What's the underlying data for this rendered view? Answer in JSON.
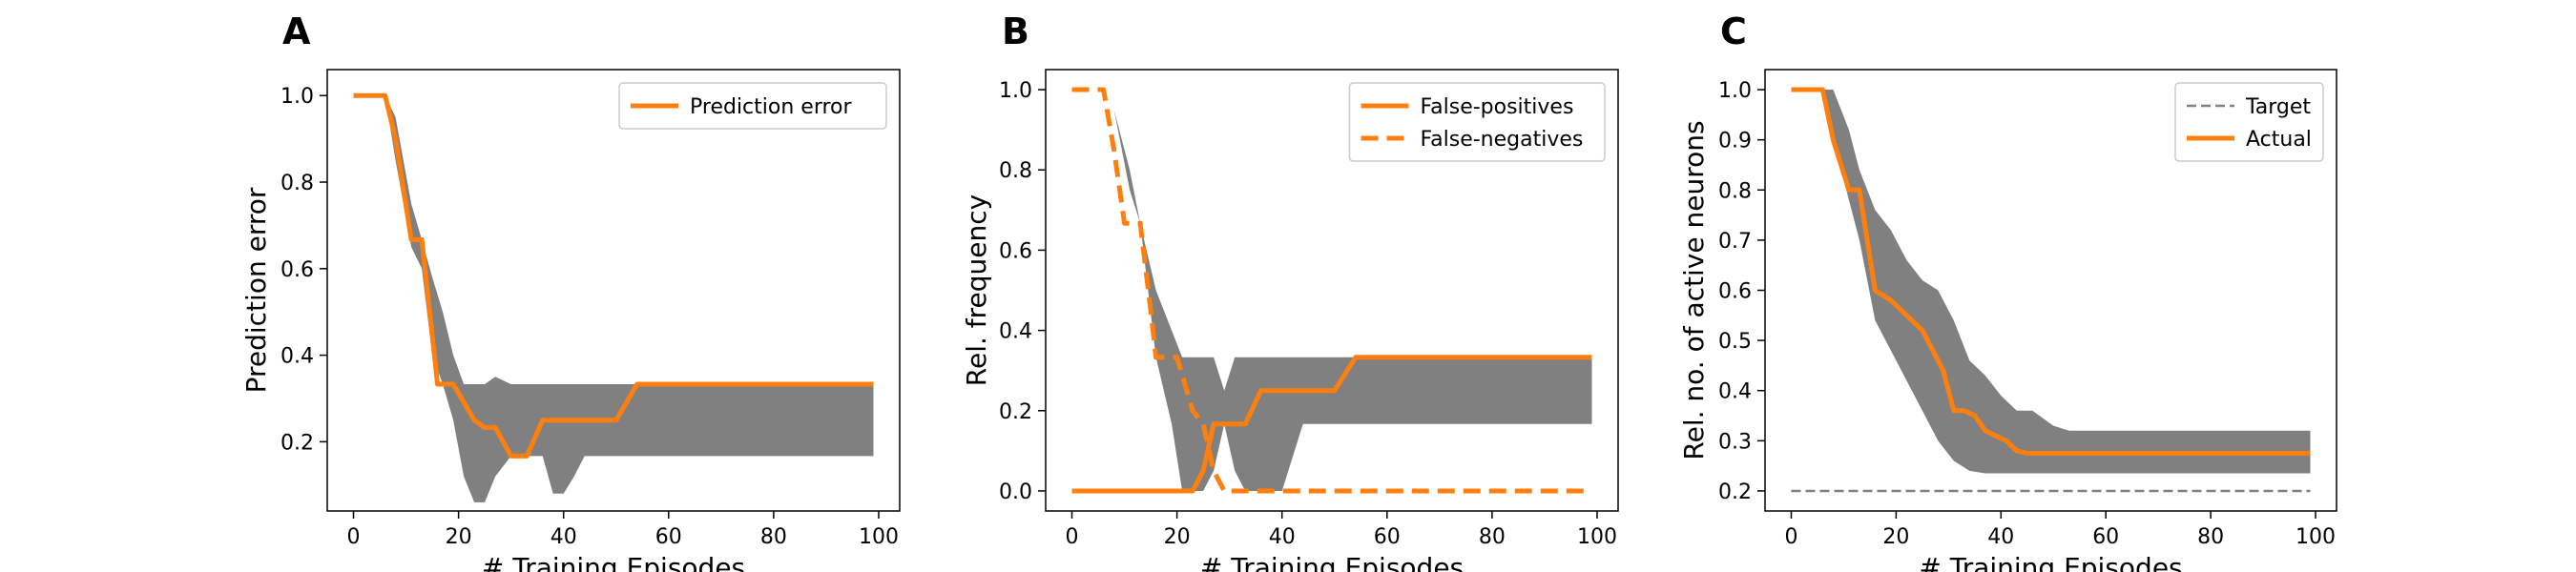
{
  "colors": {
    "series": "#ff7f0e",
    "band": "#808080",
    "target": "#808080"
  },
  "chart_data": [
    {
      "panel": "A",
      "type": "line",
      "xlabel": "# Training Episodes",
      "ylabel": "Prediction error",
      "xlim": [
        -5,
        104
      ],
      "ylim": [
        0.04,
        1.06
      ],
      "xticks": [
        "0",
        "20",
        "40",
        "60",
        "80",
        "100"
      ],
      "yticks": [
        "0.2",
        "0.4",
        "0.6",
        "0.8",
        "1.0"
      ],
      "legend": {
        "placement": "top-right",
        "entries": [
          "Prediction error"
        ]
      },
      "series": [
        {
          "name": "Prediction error",
          "style": "solid",
          "x": [
            0,
            6,
            8,
            11,
            13,
            16,
            19,
            23,
            25,
            27,
            30,
            33,
            36,
            40,
            44,
            48,
            50,
            54,
            58,
            62,
            70,
            80,
            90,
            99
          ],
          "y": [
            1.0,
            1.0,
            0.9,
            0.667,
            0.667,
            0.333,
            0.333,
            0.25,
            0.233,
            0.233,
            0.167,
            0.167,
            0.25,
            0.25,
            0.25,
            0.25,
            0.25,
            0.333,
            0.333,
            0.333,
            0.333,
            0.333,
            0.333,
            0.333
          ]
        }
      ],
      "band": {
        "x": [
          0,
          6,
          8,
          11,
          13,
          15,
          17,
          19,
          21,
          23,
          25,
          27,
          30,
          33,
          36,
          38,
          40,
          42,
          44,
          48,
          54,
          60,
          70,
          80,
          90,
          99
        ],
        "upper": [
          1.0,
          1.0,
          0.95,
          0.75,
          0.667,
          0.58,
          0.5,
          0.4,
          0.333,
          0.333,
          0.333,
          0.35,
          0.333,
          0.333,
          0.333,
          0.333,
          0.333,
          0.333,
          0.333,
          0.333,
          0.333,
          0.333,
          0.333,
          0.333,
          0.333,
          0.333
        ],
        "lower": [
          1.0,
          1.0,
          0.85,
          0.65,
          0.6,
          0.4,
          0.333,
          0.25,
          0.12,
          0.06,
          0.06,
          0.12,
          0.167,
          0.167,
          0.167,
          0.08,
          0.08,
          0.12,
          0.167,
          0.167,
          0.167,
          0.167,
          0.167,
          0.167,
          0.167,
          0.167
        ]
      }
    },
    {
      "panel": "B",
      "type": "line",
      "xlabel": "# Training Episodes",
      "ylabel": "Rel. frequency",
      "xlim": [
        -5,
        104
      ],
      "ylim": [
        -0.05,
        1.05
      ],
      "xticks": [
        "0",
        "20",
        "40",
        "60",
        "80",
        "100"
      ],
      "yticks": [
        "0.0",
        "0.2",
        "0.4",
        "0.6",
        "0.8",
        "1.0"
      ],
      "legend": {
        "placement": "top-right",
        "entries": [
          "False-positives",
          "False-negatives"
        ]
      },
      "series": [
        {
          "name": "False-positives",
          "style": "solid",
          "x": [
            0,
            10,
            20,
            23,
            25,
            27,
            30,
            33,
            36,
            38,
            40,
            44,
            48,
            50,
            54,
            60,
            70,
            80,
            90,
            99
          ],
          "y": [
            0.0,
            0.0,
            0.0,
            0.0,
            0.05,
            0.167,
            0.167,
            0.167,
            0.25,
            0.25,
            0.25,
            0.25,
            0.25,
            0.25,
            0.333,
            0.333,
            0.333,
            0.333,
            0.333,
            0.333
          ]
        },
        {
          "name": "False-negatives",
          "style": "dashed",
          "x": [
            0,
            6,
            8,
            10,
            13,
            15,
            16,
            18,
            20,
            23,
            25,
            27,
            29,
            30,
            33,
            40,
            50,
            60,
            70,
            80,
            90,
            99
          ],
          "y": [
            1.0,
            1.0,
            0.85,
            0.667,
            0.667,
            0.45,
            0.333,
            0.333,
            0.333,
            0.2,
            0.167,
            0.05,
            0.0,
            0.0,
            0.0,
            0.0,
            0.0,
            0.0,
            0.0,
            0.0,
            0.0,
            0.0
          ]
        }
      ],
      "bands": [
        {
          "x": [
            6,
            8,
            11,
            13,
            16,
            19,
            21,
            23,
            25,
            27,
            29,
            31,
            33,
            36,
            40,
            44,
            48,
            54,
            60,
            70,
            80,
            90,
            99
          ],
          "upper": [
            1.0,
            0.95,
            0.8,
            0.667,
            0.5,
            0.4,
            0.333,
            0.333,
            0.333,
            0.333,
            0.25,
            0.333,
            0.333,
            0.333,
            0.333,
            0.333,
            0.333,
            0.333,
            0.333,
            0.333,
            0.333,
            0.333,
            0.333
          ],
          "lower": [
            1.0,
            0.95,
            0.75,
            0.667,
            0.333,
            0.167,
            0.0,
            0.0,
            0.0,
            0.05,
            0.167,
            0.05,
            0.0,
            0.0,
            0.0,
            0.167,
            0.167,
            0.167,
            0.167,
            0.167,
            0.167,
            0.167,
            0.167
          ]
        }
      ]
    },
    {
      "panel": "C",
      "type": "line",
      "xlabel": "# Training Episodes",
      "ylabel": "Rel. no. of active neurons",
      "xlim": [
        -5,
        104
      ],
      "ylim": [
        0.16,
        1.04
      ],
      "xticks": [
        "0",
        "20",
        "40",
        "60",
        "80",
        "100"
      ],
      "yticks": [
        "0.2",
        "0.3",
        "0.4",
        "0.5",
        "0.6",
        "0.7",
        "0.8",
        "0.9",
        "1.0"
      ],
      "legend": {
        "placement": "top-right",
        "entries": [
          "Target",
          "Actual"
        ]
      },
      "series": [
        {
          "name": "Target",
          "style": "dashed-thin",
          "x": [
            0,
            99
          ],
          "y": [
            0.2,
            0.2
          ]
        },
        {
          "name": "Actual",
          "style": "solid",
          "x": [
            0,
            6,
            8,
            11,
            13,
            16,
            19,
            22,
            25,
            27,
            29,
            31,
            33,
            35,
            37,
            39,
            41,
            43,
            45,
            50,
            60,
            70,
            80,
            90,
            99
          ],
          "y": [
            1.0,
            1.0,
            0.9,
            0.8,
            0.8,
            0.6,
            0.58,
            0.55,
            0.52,
            0.48,
            0.44,
            0.36,
            0.36,
            0.35,
            0.32,
            0.31,
            0.3,
            0.28,
            0.275,
            0.275,
            0.275,
            0.275,
            0.275,
            0.275,
            0.275
          ]
        }
      ],
      "band": {
        "x": [
          0,
          6,
          8,
          11,
          13,
          16,
          19,
          22,
          25,
          28,
          31,
          34,
          37,
          40,
          43,
          46,
          50,
          53,
          60,
          70,
          80,
          90,
          99
        ],
        "upper": [
          1.0,
          1.0,
          1.0,
          0.92,
          0.84,
          0.76,
          0.72,
          0.66,
          0.62,
          0.6,
          0.54,
          0.46,
          0.43,
          0.39,
          0.36,
          0.36,
          0.33,
          0.32,
          0.32,
          0.32,
          0.32,
          0.32,
          0.32
        ],
        "lower": [
          1.0,
          1.0,
          0.9,
          0.78,
          0.7,
          0.54,
          0.48,
          0.42,
          0.36,
          0.3,
          0.26,
          0.24,
          0.235,
          0.235,
          0.235,
          0.235,
          0.235,
          0.235,
          0.235,
          0.235,
          0.235,
          0.235,
          0.235
        ]
      }
    }
  ]
}
